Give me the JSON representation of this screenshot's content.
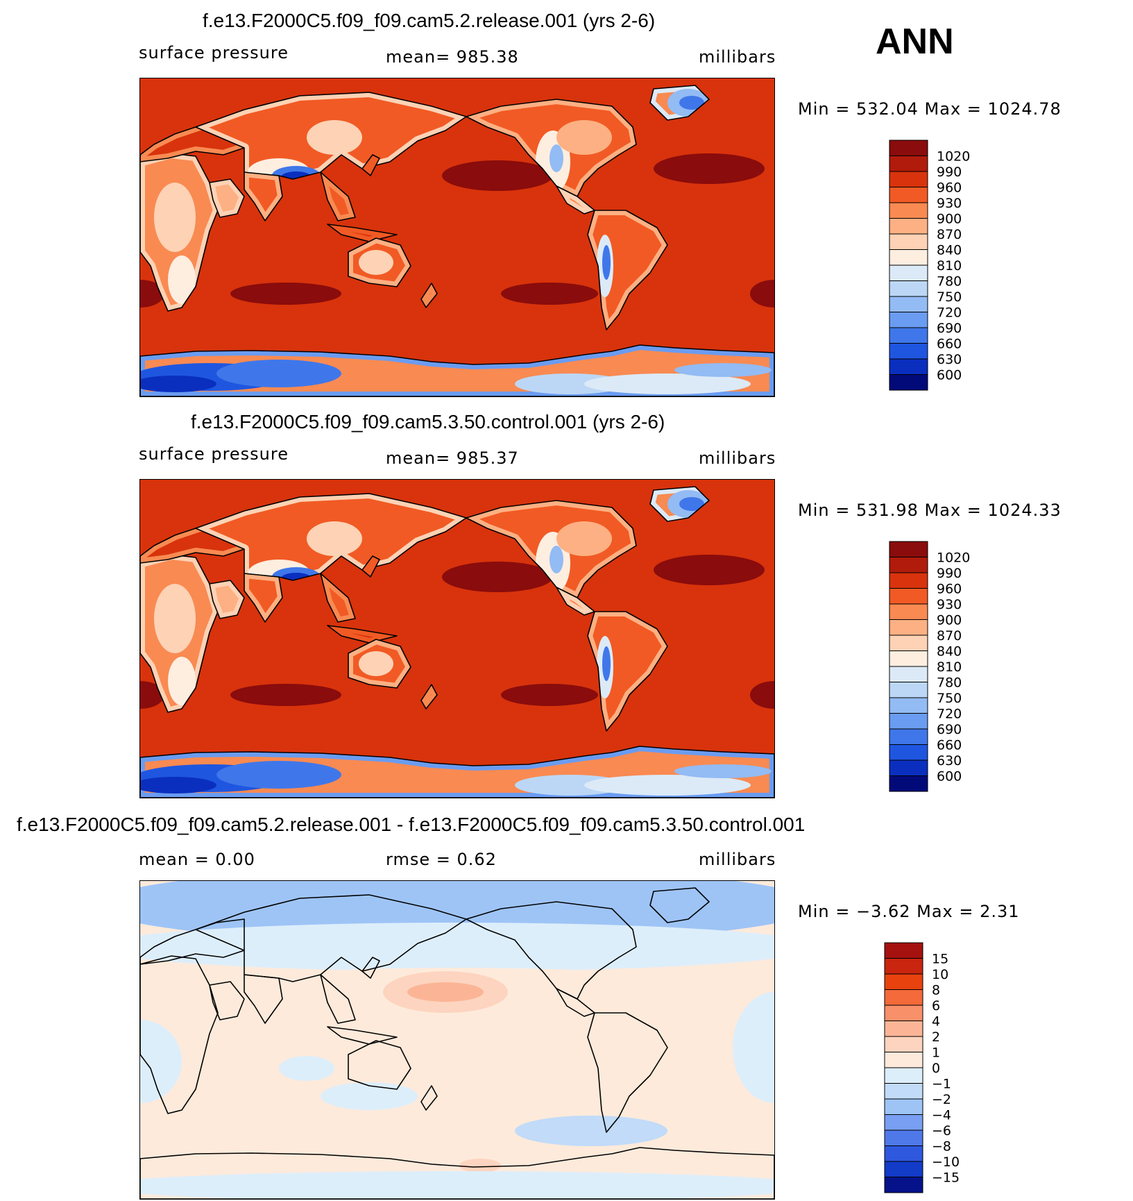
{
  "season": "ANN",
  "chart_data": [
    {
      "type": "heatmap",
      "title": "f.e13.F2000C5.f09_f09.cam5.2.release.001 (yrs 2-6)",
      "left_label": "surface pressure",
      "center_label": "mean=  985.38",
      "units": "millibars",
      "min_max": "Min  =  532.04  Max  =  1024.78",
      "colorbar_levels": [
        "1020",
        "990",
        "960",
        "930",
        "900",
        "870",
        "840",
        "810",
        "780",
        "750",
        "720",
        "690",
        "660",
        "630",
        "600"
      ],
      "colors": [
        "#8a0c0c",
        "#b11b0c",
        "#d8330c",
        "#f15a24",
        "#f98a52",
        "#fdb083",
        "#fdd2b5",
        "#fdeee0",
        "#dceaf7",
        "#bcd7f6",
        "#93bbf4",
        "#6a9cf1",
        "#3f77ea",
        "#1f56e0",
        "#0a2fbf",
        "#020a7a"
      ],
      "field": "pressure"
    },
    {
      "type": "heatmap",
      "title": "f.e13.F2000C5.f09_f09.cam5.3.50.control.001 (yrs 2-6)",
      "left_label": "surface pressure",
      "center_label": "mean=  985.37",
      "units": "millibars",
      "min_max": "Min  =  531.98  Max  =  1024.33",
      "colorbar_levels": [
        "1020",
        "990",
        "960",
        "930",
        "900",
        "870",
        "840",
        "810",
        "780",
        "750",
        "720",
        "690",
        "660",
        "630",
        "600"
      ],
      "colors": [
        "#8a0c0c",
        "#b11b0c",
        "#d8330c",
        "#f15a24",
        "#f98a52",
        "#fdb083",
        "#fdd2b5",
        "#fdeee0",
        "#dceaf7",
        "#bcd7f6",
        "#93bbf4",
        "#6a9cf1",
        "#3f77ea",
        "#1f56e0",
        "#0a2fbf",
        "#020a7a"
      ],
      "field": "pressure"
    },
    {
      "type": "heatmap",
      "title": "f.e13.F2000C5.f09_f09.cam5.2.release.001 - f.e13.F2000C5.f09_f09.cam5.3.50.control.001",
      "left_label": "mean  =     0.00",
      "center_label": "rmse  =     0.62",
      "units": "millibars",
      "min_max": "Min  =    −3.62  Max  =      2.31",
      "colorbar_levels": [
        "15",
        "10",
        "8",
        "6",
        "4",
        "2",
        "1",
        "0",
        "−1",
        "−2",
        "−4",
        "−6",
        "−8",
        "−10",
        "−15"
      ],
      "colors": [
        "#a5110f",
        "#c9250f",
        "#e8420f",
        "#f46a3a",
        "#f8906a",
        "#fbb596",
        "#fdd4bf",
        "#fdeadb",
        "#ddeefb",
        "#c1dbf8",
        "#9ec4f6",
        "#789ff1",
        "#4f79e9",
        "#2e58de",
        "#123bc8",
        "#05128a"
      ],
      "field": "diff"
    }
  ]
}
